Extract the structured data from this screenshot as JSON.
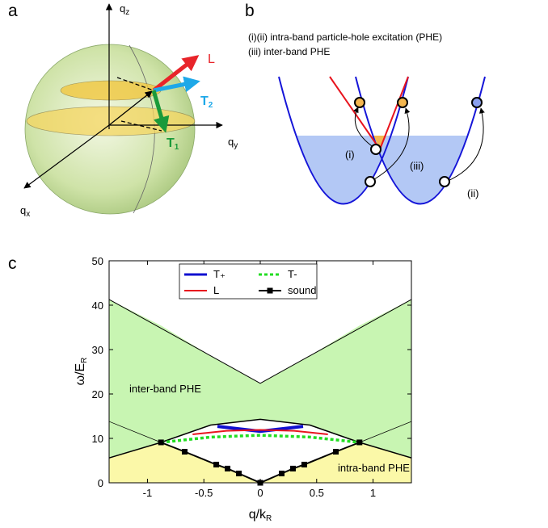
{
  "panel_labels": [
    "a",
    "b",
    "c"
  ],
  "sphere": {
    "qz": {
      "main": "q",
      "sub": "z"
    },
    "qy": {
      "main": "q",
      "sub": "y"
    },
    "qx": {
      "main": "q",
      "sub": "x"
    },
    "L": "L",
    "T2": {
      "main": "T",
      "sub": "2"
    },
    "T1": {
      "main": "T",
      "sub": "1"
    }
  },
  "dispersion": {
    "legend": [
      "(i)(ii) intra-band particle-hole excitation (PHE)",
      "(iii) inter-band PHE"
    ],
    "labels": [
      "(i)",
      "(iii)",
      "(ii)"
    ]
  },
  "chart_data": {
    "type": "line",
    "xlabel": {
      "main": "q/k",
      "sub": "R"
    },
    "ylabel": {
      "main": "ω/E",
      "sub": "R"
    },
    "xlim": [
      -1.34,
      1.34
    ],
    "xticks": [
      -1,
      -0.5,
      0,
      0.5,
      1
    ],
    "ylim": [
      0,
      50
    ],
    "yticks": [
      0,
      10,
      20,
      30,
      40,
      50
    ],
    "areas": [
      {
        "label": "inter-band PHE",
        "color": "#c8f5b2",
        "x": [
          -1.34,
          -0.88,
          -0.44,
          0,
          0.44,
          0.88,
          1.34
        ],
        "upper": [
          41.3,
          35.4,
          28.6,
          22.4,
          28.6,
          35.4,
          41.3
        ],
        "lower": [
          5.6,
          9.1,
          13,
          14.3,
          13,
          9.1,
          5.6
        ]
      },
      {
        "label": "intra-band PHE",
        "color": "#fbf8a8",
        "x": [
          -1.34,
          -0.88,
          -0.67,
          -0.39,
          -0.29,
          -0.19,
          0,
          0.19,
          0.29,
          0.39,
          0.67,
          0.88,
          1.34
        ],
        "upper": [
          5.6,
          9.1,
          7,
          4.1,
          3.2,
          2.1,
          0,
          2.1,
          3.2,
          4.1,
          7,
          9.1,
          5.6
        ]
      }
    ],
    "boundaries": [
      {
        "x": [
          -1.34,
          0,
          1.34
        ],
        "y": [
          41.3,
          22.4,
          41.3
        ],
        "width": 1
      },
      {
        "x": [
          -1.34,
          -0.88
        ],
        "y": [
          13.8,
          9.1
        ],
        "width": 0.7
      },
      {
        "x": [
          0.88,
          1.34
        ],
        "y": [
          9.1,
          13.8
        ],
        "width": 0.7
      },
      {
        "x": [
          -0.88,
          -0.44,
          0,
          0.44,
          0.88
        ],
        "y": [
          9.1,
          13,
          14.3,
          13,
          9.1
        ],
        "width": 1.5
      },
      {
        "x": [
          -1.34,
          -0.88
        ],
        "y": [
          5.6,
          9.1
        ],
        "width": 1.5
      },
      {
        "x": [
          0.88,
          1.34
        ],
        "y": [
          9.1,
          5.6
        ],
        "width": 1.5
      }
    ],
    "series": [
      {
        "name": "T₊",
        "color": "#1010d0",
        "style": "solid",
        "width": 4,
        "x": [
          -0.38,
          0,
          0.38
        ],
        "values": [
          12.7,
          11.6,
          12.7
        ]
      },
      {
        "name": "L",
        "color": "#e8141e",
        "style": "solid",
        "width": 2,
        "x": [
          -0.6,
          -0.3,
          0,
          0.3,
          0.6
        ],
        "values": [
          10.9,
          11.7,
          11.9,
          11.7,
          10.9
        ]
      },
      {
        "name": "T-",
        "color": "#22dd22",
        "style": "dashed",
        "width": 3.5,
        "x": [
          -0.88,
          -0.44,
          0,
          0.44,
          0.88
        ],
        "values": [
          9.1,
          10.3,
          10.7,
          10.3,
          9.1
        ]
      },
      {
        "name": "sound",
        "color": "#000000",
        "style": "solid",
        "width": 2,
        "marker": "square",
        "x": [
          -0.88,
          -0.67,
          -0.39,
          -0.29,
          -0.19,
          0,
          0.19,
          0.29,
          0.39,
          0.67,
          0.88
        ],
        "values": [
          9.1,
          7,
          4.1,
          3.2,
          2.1,
          0,
          2.1,
          3.2,
          4.1,
          7,
          9.1
        ]
      }
    ]
  }
}
